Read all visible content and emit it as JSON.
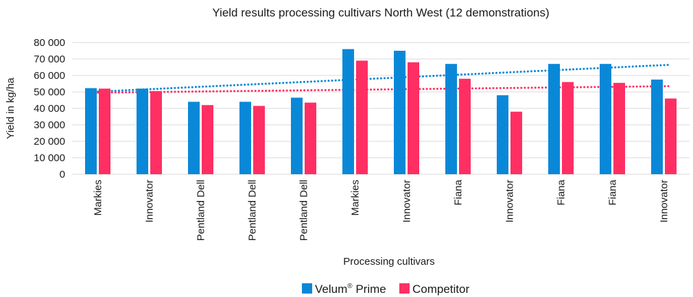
{
  "chart_data": {
    "type": "bar",
    "title": "Yield results processing cultivars North West (12 demonstrations)",
    "xlabel": "Processing cultivars",
    "ylabel": "Yield in kg/ha",
    "ylim": [
      0,
      80000
    ],
    "yticks": [
      0,
      10000,
      20000,
      30000,
      40000,
      50000,
      60000,
      70000,
      80000
    ],
    "ytick_labels": [
      "0",
      "10 000",
      "20 000",
      "30 000",
      "40 000",
      "50 000",
      "60 000",
      "70 000",
      "80 000"
    ],
    "grid": true,
    "legend_position": "bottom",
    "categories": [
      "Markies",
      "Innovator",
      "Pentland Dell",
      "Pentland Dell",
      "Pentland Dell",
      "Markies",
      "Innovator",
      "Fiana",
      "Innovator",
      "Fiana",
      "Fiana",
      "Innovator"
    ],
    "series": [
      {
        "name": "Velum® Prime",
        "color": "#0a88d8",
        "values": [
          52300,
          52000,
          44000,
          44000,
          46500,
          76000,
          75000,
          67000,
          48000,
          67000,
          67000,
          57500
        ],
        "trendline": {
          "style": "dotted",
          "from": 50000,
          "to": 66500
        }
      },
      {
        "name": "Competitor",
        "color": "#ff2f63",
        "values": [
          52000,
          50500,
          42000,
          41500,
          43500,
          69000,
          68000,
          58000,
          38000,
          56000,
          55500,
          46000
        ],
        "trendline": {
          "style": "dotted",
          "from": 49500,
          "to": 53500
        }
      }
    ],
    "legend": {
      "velum_base": "Velum",
      "velum_sup": "®",
      "velum_rest": " Prime",
      "competitor": "Competitor"
    }
  }
}
